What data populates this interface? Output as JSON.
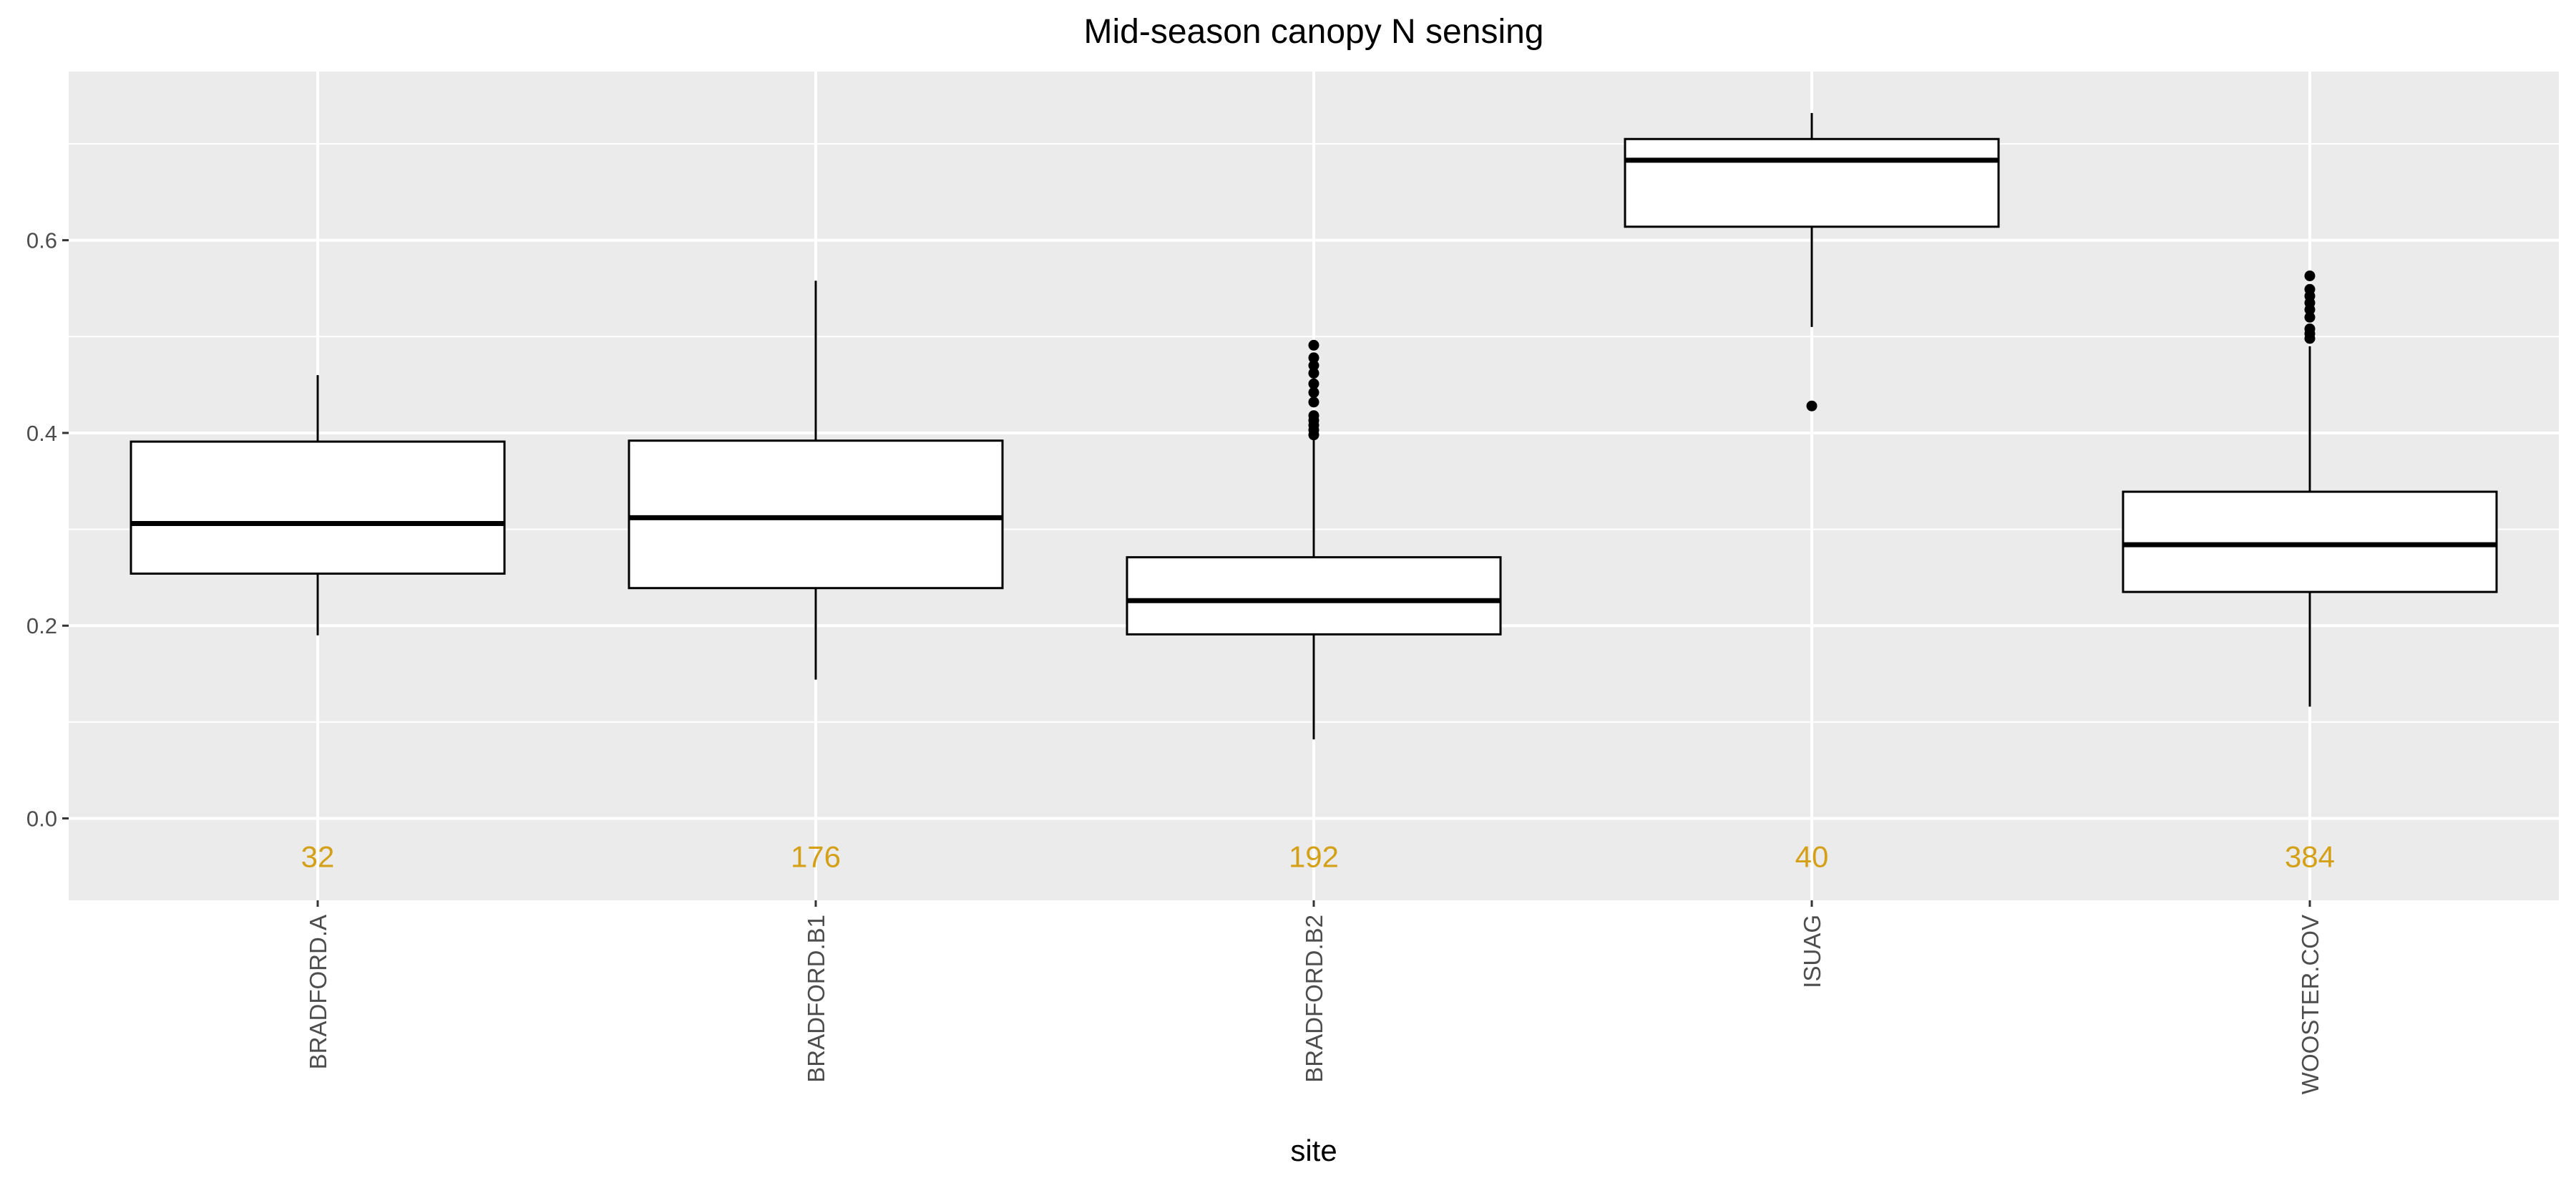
{
  "chart_data": {
    "type": "boxplot",
    "title": "Mid-season canopy N sensing",
    "xlabel": "site",
    "ylabel": "",
    "ylim": [
      -0.085,
      0.775
    ],
    "yticks": [
      0.0,
      0.2,
      0.4,
      0.6
    ],
    "ytick_labels": [
      "0.0",
      "0.2",
      "0.4",
      "0.6"
    ],
    "yminor": [
      0.1,
      0.3,
      0.5,
      0.7
    ],
    "grid": true,
    "panel_background": "#ebebeb",
    "count_color": "#d4a017",
    "categories": [
      "BRADFORD.A",
      "BRADFORD.B1",
      "BRADFORD.B2",
      "ISUAG",
      "WOOSTER.COV"
    ],
    "counts": [
      "32",
      "176",
      "192",
      "40",
      "384"
    ],
    "count_y": 0.0,
    "boxes": [
      {
        "site": "BRADFORD.A",
        "whisker_low": 0.19,
        "q1": 0.254,
        "median": 0.306,
        "q3": 0.391,
        "whisker_high": 0.46,
        "outliers": []
      },
      {
        "site": "BRADFORD.B1",
        "whisker_low": 0.144,
        "q1": 0.239,
        "median": 0.312,
        "q3": 0.392,
        "whisker_high": 0.558,
        "outliers": []
      },
      {
        "site": "BRADFORD.B2",
        "whisker_low": 0.082,
        "q1": 0.191,
        "median": 0.226,
        "q3": 0.271,
        "whisker_high": 0.395,
        "outliers": [
          0.398,
          0.403,
          0.408,
          0.413,
          0.418,
          0.432,
          0.442,
          0.451,
          0.462,
          0.47,
          0.478,
          0.491
        ]
      },
      {
        "site": "ISUAG",
        "whisker_low": 0.51,
        "q1": 0.614,
        "median": 0.683,
        "q3": 0.705,
        "whisker_high": 0.732,
        "outliers": [
          0.428
        ]
      },
      {
        "site": "WOOSTER.COV",
        "whisker_low": 0.116,
        "q1": 0.235,
        "median": 0.284,
        "q3": 0.339,
        "whisker_high": 0.49,
        "outliers": [
          0.498,
          0.503,
          0.508,
          0.52,
          0.528,
          0.535,
          0.542,
          0.549,
          0.563
        ]
      }
    ]
  }
}
